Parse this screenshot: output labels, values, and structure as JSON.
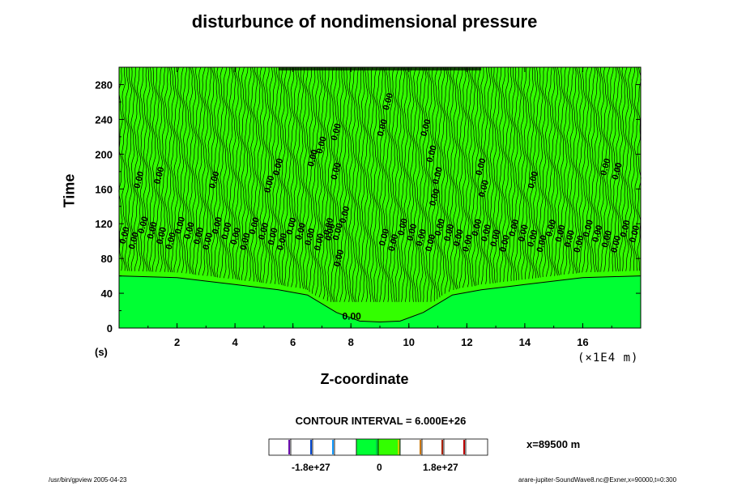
{
  "title": "disturbunce of nondimensional pressure",
  "footer": {
    "left": "/usr/bin/gpview 2005-04-23",
    "right": "arare-jupiter-SoundWave8.nc@Exner,x=90000,t=0:300"
  },
  "contour_interval": "CONTOUR INTERVAL = 6.000E+26",
  "x_coordinate_note": "x=89500 m",
  "colorbar": {
    "tick_labels": [
      "-1.8e+27",
      "0",
      "1.8e+27"
    ],
    "colors": [
      "#ffffff",
      "#ffffff",
      "#ffffff",
      "#ffffff",
      "#00ff33",
      "#33ff00",
      "#ffffff",
      "#ffffff",
      "#ffffff",
      "#ffffff"
    ],
    "separator_colors": [
      "#6a0dad",
      "#0044cc",
      "#1199ff",
      "#ffffff",
      "#00cc44",
      "#cccc00",
      "#cc7700",
      "#aa2200",
      "#bb0000"
    ]
  },
  "contour_label": "0.00",
  "chart_data": {
    "type": "heatmap",
    "title": "disturbunce of nondimensional pressure",
    "xlabel": "Z-coordinate",
    "xunit": "(×1E4 m)",
    "ylabel": "Time",
    "yunit": "(s)",
    "xlim": [
      0,
      18
    ],
    "ylim": [
      0,
      300
    ],
    "xticks": [
      2,
      4,
      6,
      8,
      10,
      12,
      14,
      16
    ],
    "yticks": [
      0,
      40,
      80,
      120,
      160,
      200,
      240,
      280
    ],
    "fill_colors": {
      "lower_region": "#33ff00",
      "dip_region": "#00ff33",
      "upper_region": "#33ff00"
    },
    "contour_value_label": "0.00",
    "dip_boundary": [
      {
        "x": 0.0,
        "y": 60
      },
      {
        "x": 2.0,
        "y": 58
      },
      {
        "x": 4.0,
        "y": 50
      },
      {
        "x": 5.5,
        "y": 44
      },
      {
        "x": 6.5,
        "y": 38
      },
      {
        "x": 7.5,
        "y": 18
      },
      {
        "x": 8.3,
        "y": 8
      },
      {
        "x": 9.0,
        "y": 7
      },
      {
        "x": 9.7,
        "y": 8
      },
      {
        "x": 10.5,
        "y": 18
      },
      {
        "x": 11.5,
        "y": 38
      },
      {
        "x": 12.5,
        "y": 44
      },
      {
        "x": 14.0,
        "y": 50
      },
      {
        "x": 16.0,
        "y": 58
      },
      {
        "x": 18.0,
        "y": 60
      }
    ]
  }
}
